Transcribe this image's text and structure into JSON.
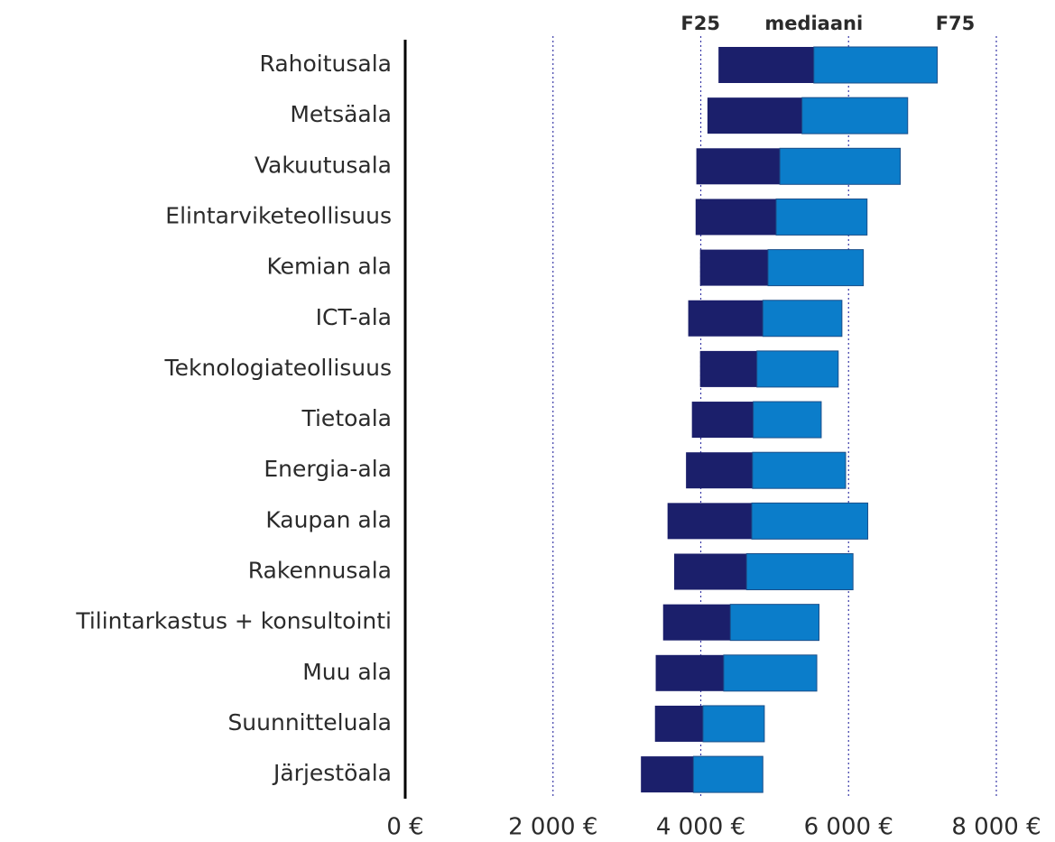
{
  "chart_data": {
    "type": "range_bar",
    "categories": [
      "Rahoitusala",
      "Metsäala",
      "Vakuutusala",
      "Elintarviketeollisuus",
      "Kemian ala",
      "ICT-ala",
      "Teknologiateollisuus",
      "Tietoala",
      "Energia-ala",
      "Kaupan ala",
      "Rakennusala",
      "Tilintarkastus + konsultointi",
      "Muu ala",
      "Suunnitteluala",
      "Järjestöala"
    ],
    "series": [
      {
        "name": "F25",
        "color": "#1b1f6b",
        "values": [
          4240,
          4090,
          3940,
          3930,
          3990,
          3830,
          3990,
          3880,
          3800,
          3550,
          3640,
          3490,
          3390,
          3380,
          3190
        ]
      },
      {
        "name": "mediaani",
        "color": "#0b7dca",
        "values": [
          5530,
          5370,
          5070,
          5020,
          4910,
          4840,
          4760,
          4710,
          4700,
          4690,
          4620,
          4400,
          4310,
          4030,
          3900
        ]
      },
      {
        "name": "F75",
        "values": [
          7200,
          6800,
          6700,
          6250,
          6200,
          5910,
          5860,
          5630,
          5960,
          6260,
          6060,
          5600,
          5570,
          4860,
          4840
        ]
      }
    ],
    "xlim": [
      0,
      8000
    ],
    "xticks": [
      {
        "value": 0,
        "label": "0 €"
      },
      {
        "value": 2000,
        "label": "2 000 €"
      },
      {
        "value": 4000,
        "label": "4 000 €"
      },
      {
        "value": 6000,
        "label": "6 000 €"
      },
      {
        "value": 8000,
        "label": "8 000 €"
      }
    ],
    "grid": true
  }
}
